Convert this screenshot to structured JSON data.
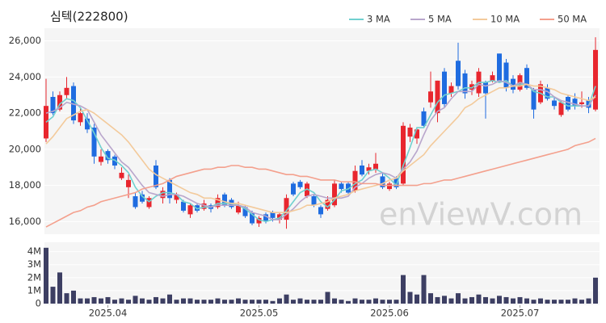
{
  "chart_data": {
    "type": "candlestick",
    "title": "심텍(222800)",
    "watermark": "enViewV.com",
    "categories": [
      null,
      null,
      null,
      null,
      null,
      null,
      null,
      null,
      null,
      "2025.04",
      null,
      null,
      null,
      null,
      null,
      null,
      null,
      null,
      null,
      null,
      null,
      null,
      null,
      null,
      null,
      null,
      null,
      null,
      null,
      null,
      null,
      "2025.05",
      null,
      null,
      null,
      null,
      null,
      null,
      null,
      null,
      null,
      null,
      null,
      null,
      null,
      null,
      null,
      null,
      null,
      null,
      "2025.06",
      null,
      null,
      null,
      null,
      null,
      null,
      null,
      null,
      null,
      null,
      null,
      null,
      null,
      null,
      null,
      null,
      null,
      null,
      "2025.07",
      null,
      null,
      null,
      null,
      null,
      null,
      null,
      null,
      null,
      null,
      null
    ],
    "open": [
      20600,
      22900,
      22200,
      23000,
      23500,
      21500,
      21700,
      21200,
      19300,
      19900,
      19600,
      18400,
      17900,
      17400,
      17500,
      16800,
      19100,
      17300,
      18300,
      17200,
      17100,
      16400,
      16900,
      16700,
      16900,
      16800,
      17500,
      17200,
      16500,
      16800,
      16500,
      15900,
      16400,
      16500,
      16100,
      16100,
      18100,
      18200,
      17400,
      17400,
      16800,
      16700,
      16900,
      18100,
      18100,
      17700,
      19100,
      18800,
      18900,
      18500,
      17800,
      18400,
      18100,
      20700,
      20600,
      22100,
      22600,
      22000,
      24300,
      23100,
      24900,
      24200,
      23300,
      23100,
      23700,
      23800,
      25300,
      24800,
      23900,
      23300,
      24500,
      23300,
      22600,
      23400,
      22700,
      21900,
      22900,
      22800,
      22500,
      22700,
      22200
    ],
    "high": [
      23900,
      23200,
      23200,
      24000,
      23700,
      22300,
      22000,
      21400,
      20000,
      20000,
      19700,
      19000,
      18600,
      17600,
      17700,
      17400,
      19400,
      17900,
      18400,
      17600,
      17200,
      17000,
      17000,
      17200,
      17000,
      17500,
      17600,
      17300,
      17100,
      16900,
      16600,
      16300,
      16500,
      16600,
      16500,
      17500,
      18200,
      18300,
      18200,
      17500,
      16900,
      17400,
      18300,
      18200,
      18200,
      19100,
      19400,
      19200,
      19800,
      18700,
      18200,
      18500,
      21500,
      21400,
      21200,
      22300,
      24300,
      23800,
      24500,
      23700,
      25900,
      24400,
      23800,
      24500,
      23800,
      24300,
      25300,
      25000,
      24100,
      24200,
      24700,
      23400,
      23800,
      23600,
      22900,
      22700,
      23000,
      23100,
      23200,
      22900,
      26200
    ],
    "low": [
      20400,
      21900,
      22100,
      22800,
      21400,
      21300,
      20900,
      19200,
      19100,
      19200,
      18900,
      18300,
      17300,
      16700,
      17000,
      16700,
      17800,
      17000,
      17000,
      17000,
      16500,
      16200,
      16500,
      16600,
      16500,
      16700,
      16800,
      16700,
      16400,
      16200,
      15800,
      15700,
      15900,
      16000,
      15900,
      15600,
      17400,
      17800,
      17300,
      16800,
      16200,
      16600,
      16800,
      17600,
      17500,
      17600,
      18500,
      18600,
      18700,
      17800,
      17700,
      17800,
      18000,
      20400,
      20300,
      21200,
      22300,
      21500,
      22300,
      22900,
      23300,
      22800,
      23000,
      22900,
      21700,
      23700,
      23700,
      23200,
      23100,
      23200,
      23300,
      21700,
      22500,
      22700,
      22200,
      21800,
      22100,
      22200,
      22300,
      22000,
      22100
    ],
    "close": [
      22400,
      22000,
      23000,
      23400,
      21600,
      22000,
      21100,
      19600,
      19600,
      19400,
      19100,
      18700,
      18300,
      16800,
      17100,
      17300,
      17900,
      17700,
      17300,
      17500,
      16600,
      16900,
      16600,
      17000,
      16700,
      17300,
      16900,
      16800,
      16900,
      16300,
      15900,
      16200,
      16000,
      16200,
      16400,
      17300,
      17500,
      17900,
      18100,
      16900,
      16400,
      17200,
      18100,
      17800,
      17600,
      18800,
      18600,
      19000,
      19200,
      17900,
      18100,
      17900,
      21300,
      21200,
      21100,
      21300,
      23200,
      23800,
      22500,
      23500,
      23500,
      23100,
      23600,
      24300,
      23100,
      24100,
      23800,
      23400,
      23300,
      24100,
      23400,
      22200,
      23600,
      22800,
      22400,
      22600,
      22200,
      22400,
      22600,
      22300,
      25500
    ],
    "volume": [
      4300000,
      1300000,
      2400000,
      800000,
      1000000,
      400000,
      400000,
      500000,
      400000,
      500000,
      300000,
      400000,
      300000,
      600000,
      400000,
      300000,
      500000,
      400000,
      700000,
      300000,
      400000,
      400000,
      300000,
      300000,
      300000,
      400000,
      300000,
      300000,
      400000,
      300000,
      300000,
      300000,
      300000,
      200000,
      400000,
      700000,
      300000,
      400000,
      300000,
      300000,
      300000,
      900000,
      400000,
      300000,
      200000,
      400000,
      300000,
      300000,
      400000,
      300000,
      300000,
      300000,
      2200000,
      900000,
      700000,
      2200000,
      800000,
      500000,
      600000,
      400000,
      800000,
      400000,
      500000,
      700000,
      500000,
      400000,
      600000,
      500000,
      400000,
      500000,
      400000,
      300000,
      400000,
      300000,
      300000,
      300000,
      300000,
      400000,
      300000,
      400000,
      2000000
    ],
    "up_color": "#e8262e",
    "down_color": "#1f6ce0",
    "volume_color": "#3d3f63",
    "series": [
      {
        "name": "3 MA",
        "color": "#70d0cf",
        "values": [
          21500,
          21800,
          22500,
          22800,
          22700,
          22300,
          21600,
          20900,
          20100,
          19500,
          19400,
          19100,
          18700,
          17900,
          17400,
          17100,
          17400,
          17600,
          17600,
          17500,
          17100,
          17000,
          16700,
          16800,
          16800,
          17000,
          17000,
          17000,
          16900,
          16700,
          16400,
          16100,
          16000,
          16100,
          16200,
          16600,
          17100,
          17600,
          17800,
          17600,
          17100,
          16800,
          17200,
          17700,
          17800,
          18100,
          18300,
          18800,
          18900,
          18700,
          18400,
          18000,
          19100,
          20100,
          21200,
          21200,
          21900,
          22600,
          23000,
          23100,
          23200,
          23400,
          23400,
          23700,
          23700,
          23800,
          23700,
          23800,
          23500,
          23600,
          23600,
          23200,
          23100,
          22900,
          22900,
          22600,
          22400,
          22400,
          22400,
          22400,
          23500
        ]
      },
      {
        "name": "5 MA",
        "color": "#b9a6cc",
        "values": [
          22000,
          22100,
          22300,
          22600,
          22500,
          22400,
          22200,
          21500,
          20800,
          20300,
          19800,
          19300,
          19000,
          18500,
          18000,
          17600,
          17500,
          17400,
          17500,
          17500,
          17400,
          17200,
          17000,
          16900,
          16800,
          16900,
          16900,
          16900,
          16900,
          16800,
          16500,
          16400,
          16300,
          16100,
          16100,
          16400,
          16700,
          17100,
          17400,
          17500,
          17400,
          17300,
          17300,
          17300,
          17400,
          17900,
          18100,
          18400,
          18600,
          18700,
          18600,
          18400,
          18900,
          19300,
          19900,
          20800,
          21600,
          22100,
          22300,
          22800,
          23200,
          23200,
          23200,
          23600,
          23500,
          23600,
          23800,
          23700,
          23500,
          23700,
          23600,
          23300,
          23300,
          23200,
          22900,
          22700,
          22600,
          22500,
          22400,
          22400,
          23000
        ]
      },
      {
        "name": "10 MA",
        "color": "#f3ca9b",
        "values": [
          20300,
          20700,
          21200,
          21700,
          21900,
          22100,
          22200,
          22000,
          21700,
          21400,
          21100,
          20800,
          20400,
          19900,
          19400,
          18900,
          18600,
          18400,
          18200,
          18000,
          17800,
          17600,
          17500,
          17300,
          17300,
          17200,
          17100,
          17000,
          17000,
          16900,
          16800,
          16700,
          16600,
          16500,
          16500,
          16500,
          16600,
          16700,
          16900,
          16900,
          17000,
          17100,
          17300,
          17400,
          17500,
          17700,
          17800,
          17900,
          18000,
          18100,
          18300,
          18400,
          18800,
          19100,
          19400,
          19700,
          20200,
          20600,
          21000,
          21400,
          21800,
          22300,
          22500,
          22800,
          23000,
          23200,
          23400,
          23400,
          23500,
          23500,
          23600,
          23500,
          23500,
          23400,
          23300,
          23100,
          23000,
          22900,
          22800,
          22700,
          22900
        ]
      },
      {
        "name": "50 MA",
        "color": "#f4a08d",
        "values": [
          15700,
          15900,
          16100,
          16300,
          16500,
          16600,
          16800,
          16900,
          17100,
          17200,
          17300,
          17400,
          17500,
          17600,
          17800,
          17900,
          18000,
          18100,
          18300,
          18500,
          18600,
          18700,
          18800,
          18900,
          18900,
          19000,
          19000,
          19100,
          19100,
          19000,
          19000,
          18900,
          18900,
          18800,
          18700,
          18600,
          18600,
          18500,
          18500,
          18400,
          18300,
          18300,
          18300,
          18200,
          18200,
          18200,
          18100,
          18100,
          18100,
          18000,
          18000,
          18000,
          18000,
          18000,
          18000,
          18100,
          18100,
          18200,
          18300,
          18300,
          18400,
          18500,
          18600,
          18700,
          18800,
          18900,
          19000,
          19100,
          19200,
          19300,
          19400,
          19500,
          19600,
          19700,
          19800,
          19900,
          20000,
          20200,
          20300,
          20400,
          20600
        ]
      }
    ],
    "ylim": [
      15300,
      26700
    ],
    "yticks": [
      {
        "value": 16000,
        "label": "16,000"
      },
      {
        "value": 18000,
        "label": "18,000"
      },
      {
        "value": 20000,
        "label": "20,000"
      },
      {
        "value": 22000,
        "label": "22,000"
      },
      {
        "value": 24000,
        "label": "24,000"
      },
      {
        "value": 26000,
        "label": "26,000"
      }
    ],
    "volume_ylim": [
      0,
      4600000
    ],
    "volume_yticks": [
      0,
      {
        "value": 1000000,
        "label": "1M"
      },
      {
        "value": 2000000,
        "label": "2M"
      },
      {
        "value": 3000000,
        "label": "3M"
      },
      {
        "value": 4000000,
        "label": "4M"
      }
    ],
    "grid": true
  }
}
